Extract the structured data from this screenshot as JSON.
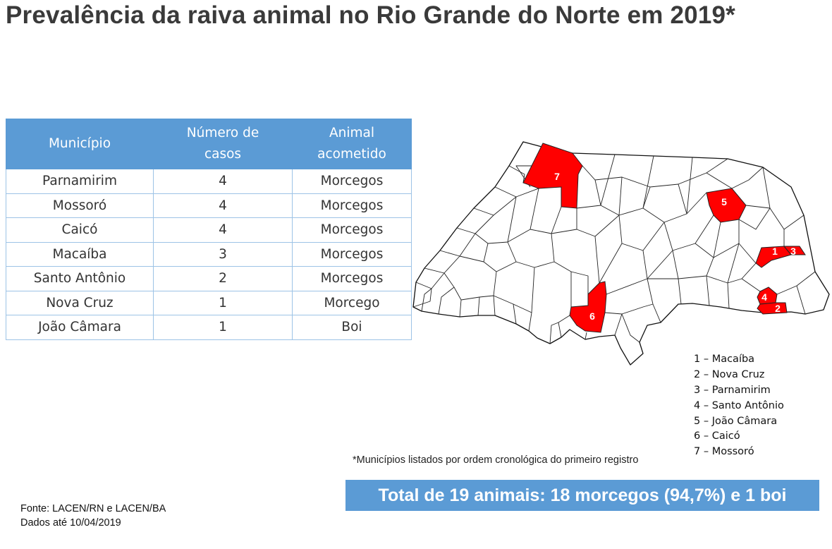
{
  "title": "Prevalência da raiva animal no Rio Grande do Norte em 2019*",
  "table": {
    "headers": [
      [
        "Município"
      ],
      [
        "Número de",
        "casos"
      ],
      [
        "Animal",
        "acometido"
      ]
    ],
    "rows": [
      [
        "Parnamirim",
        "4",
        "Morcegos"
      ],
      [
        "Mossoró",
        "4",
        "Morcegos"
      ],
      [
        "Caicó",
        "4",
        "Morcegos"
      ],
      [
        "Macaíba",
        "3",
        "Morcegos"
      ],
      [
        "Santo Antônio",
        "2",
        "Morcegos"
      ],
      [
        "Nova Cruz",
        "1",
        "Morcego"
      ],
      [
        "João Câmara",
        "1",
        "Boi"
      ]
    ]
  },
  "map": {
    "highlight_color": "#ff0000",
    "boundary_color": "#222222",
    "markers": [
      "1",
      "2",
      "3",
      "4",
      "5",
      "6",
      "7"
    ]
  },
  "legend": [
    "1 – Macaíba",
    "2 – Nova Cruz",
    "3 – Parnamirim",
    "4 – Santo Antônio",
    "5 – João Câmara",
    "6 – Caicó",
    "7 – Mossoró"
  ],
  "footnote": "*Municípios listados por ordem cronológica do primeiro registro",
  "total": "Total de 19 animais: 18 morcegos (94,7%) e 1 boi",
  "source": {
    "line1": "Fonte: LACEN/RN e LACEN/BA",
    "line2": "Dados até 10/04/2019"
  }
}
